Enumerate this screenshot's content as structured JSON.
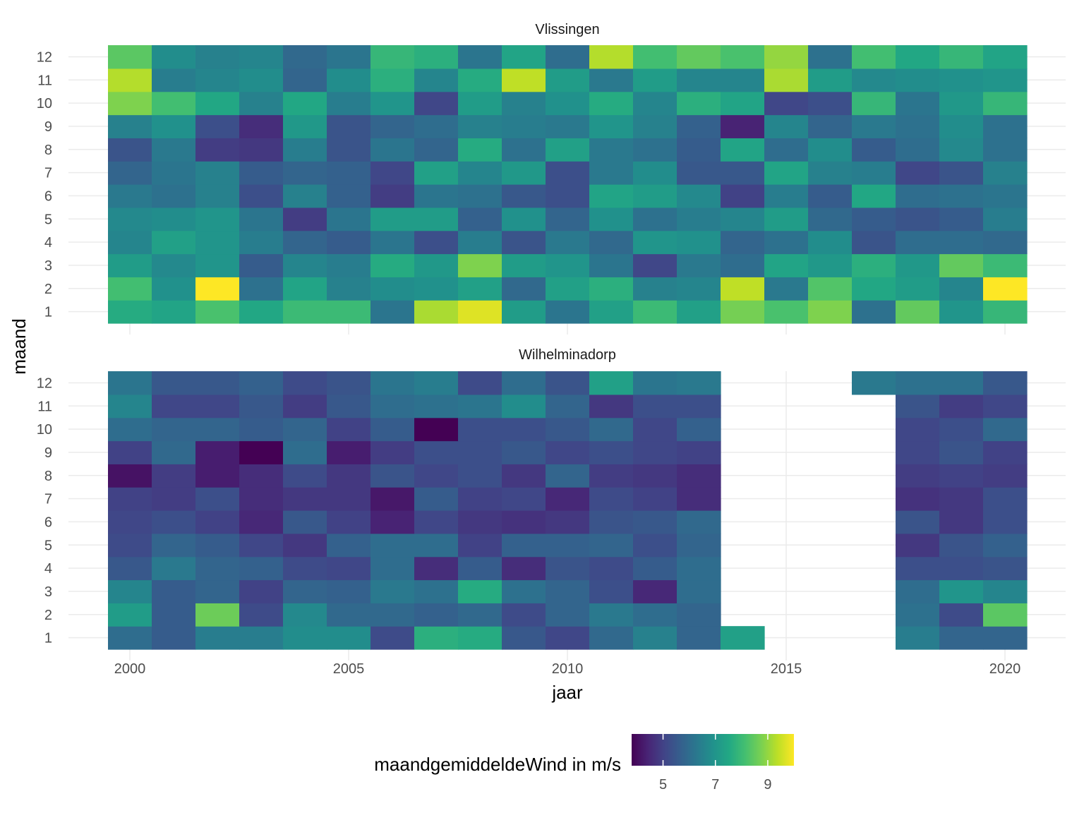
{
  "chart_data": {
    "type": "heatmap",
    "xlabel": "jaar",
    "ylabel": "maand",
    "x_ticks": [
      2000,
      2005,
      2010,
      2015,
      2020
    ],
    "x_range": [
      1999.5,
      2020.5
    ],
    "y_ticks": [
      1,
      2,
      3,
      4,
      5,
      6,
      7,
      8,
      9,
      10,
      11,
      12
    ],
    "years": [
      2000,
      2001,
      2002,
      2003,
      2004,
      2005,
      2006,
      2007,
      2008,
      2009,
      2010,
      2011,
      2012,
      2013,
      2014,
      2015,
      2016,
      2017,
      2018,
      2019,
      2020
    ],
    "colorscale": {
      "name": "viridis",
      "min": 3.8,
      "max": 10.0,
      "ticks": [
        5,
        7,
        9
      ]
    },
    "legend_title": "maandgemiddeldeWind in m/s",
    "legend_position": "bottom",
    "grid": true,
    "panels": [
      {
        "name": "Vlissingen",
        "values": [
          [
            7.6,
            7.4,
            8.2,
            7.5,
            8.0,
            8.0,
            6.2,
            9.2,
            9.7,
            7.2,
            6.2,
            7.3,
            8.0,
            7.3,
            8.7,
            8.2,
            8.8,
            6.1,
            8.5,
            7.0,
            7.9
          ],
          [
            8.1,
            6.9,
            10.0,
            6.1,
            7.4,
            6.5,
            6.8,
            6.9,
            7.3,
            5.9,
            7.3,
            7.7,
            6.5,
            6.6,
            9.4,
            6.3,
            8.3,
            7.5,
            7.2,
            6.6,
            10.0
          ],
          [
            7.2,
            6.7,
            7.0,
            5.6,
            6.6,
            6.4,
            7.6,
            7.1,
            8.8,
            7.2,
            7.0,
            6.2,
            5.1,
            6.3,
            6.0,
            7.4,
            7.1,
            7.7,
            7.1,
            8.5,
            8.0
          ],
          [
            6.6,
            7.3,
            7.0,
            6.4,
            5.8,
            5.6,
            6.2,
            5.3,
            6.4,
            5.4,
            6.3,
            5.9,
            7.0,
            6.9,
            5.8,
            6.1,
            6.8,
            5.4,
            6.0,
            6.0,
            5.9
          ],
          [
            6.7,
            6.8,
            7.0,
            6.2,
            4.9,
            6.2,
            7.2,
            7.2,
            5.7,
            6.9,
            5.8,
            6.9,
            6.1,
            6.4,
            6.6,
            7.2,
            5.9,
            5.6,
            5.4,
            5.6,
            6.4
          ],
          [
            6.3,
            6.1,
            6.5,
            5.3,
            6.5,
            5.7,
            4.9,
            6.2,
            6.1,
            5.5,
            5.3,
            7.4,
            7.2,
            6.7,
            5.0,
            6.4,
            5.6,
            7.5,
            6.0,
            6.1,
            6.2
          ],
          [
            5.8,
            6.2,
            6.5,
            5.6,
            5.8,
            5.7,
            5.1,
            7.3,
            6.6,
            7.1,
            5.3,
            6.3,
            6.8,
            5.5,
            5.5,
            7.4,
            6.5,
            6.4,
            5.1,
            5.4,
            6.5
          ],
          [
            5.4,
            6.3,
            4.9,
            4.8,
            6.4,
            5.4,
            6.2,
            5.8,
            7.6,
            6.1,
            7.3,
            6.3,
            6.1,
            5.6,
            7.4,
            6.0,
            6.8,
            5.6,
            6.0,
            6.7,
            6.1
          ],
          [
            6.5,
            6.9,
            5.3,
            4.6,
            7.1,
            5.4,
            5.8,
            6.0,
            6.5,
            6.4,
            6.3,
            7.0,
            6.5,
            5.7,
            4.4,
            6.6,
            5.8,
            6.3,
            6.1,
            6.8,
            6.1
          ],
          [
            8.8,
            8.1,
            7.5,
            6.5,
            7.5,
            6.4,
            7.0,
            5.1,
            7.2,
            6.5,
            6.9,
            7.6,
            6.6,
            7.7,
            7.4,
            5.1,
            5.3,
            7.9,
            6.2,
            7.1,
            7.9
          ],
          [
            9.3,
            6.4,
            6.6,
            6.8,
            5.8,
            6.8,
            7.7,
            6.6,
            7.6,
            9.4,
            7.2,
            6.3,
            7.2,
            6.6,
            6.6,
            9.2,
            7.2,
            6.7,
            6.8,
            6.9,
            7.0
          ],
          [
            8.4,
            6.8,
            6.5,
            6.6,
            5.9,
            6.2,
            7.9,
            7.7,
            6.2,
            7.4,
            6.0,
            9.3,
            8.1,
            8.5,
            8.2,
            9.0,
            6.1,
            8.1,
            7.5,
            7.9,
            7.4
          ]
        ]
      },
      {
        "name": "Wilhelminadorp",
        "values": [
          [
            6.0,
            5.6,
            6.4,
            6.4,
            6.8,
            6.8,
            5.2,
            7.7,
            7.6,
            5.5,
            5.1,
            5.9,
            6.5,
            5.8,
            7.3,
            null,
            null,
            null,
            6.4,
            5.8,
            5.8
          ],
          [
            7.2,
            5.6,
            8.6,
            5.2,
            6.7,
            5.9,
            5.9,
            5.7,
            5.9,
            5.2,
            5.8,
            6.3,
            6.0,
            5.8,
            null,
            null,
            null,
            null,
            6.1,
            5.2,
            8.4
          ],
          [
            6.6,
            5.6,
            5.8,
            5.0,
            5.8,
            5.7,
            6.3,
            6.1,
            7.6,
            6.1,
            5.8,
            5.3,
            4.5,
            6.0,
            null,
            null,
            null,
            null,
            6.0,
            7.0,
            6.6
          ],
          [
            5.5,
            6.3,
            5.8,
            5.7,
            5.2,
            5.1,
            6.0,
            4.6,
            5.6,
            4.6,
            5.4,
            5.2,
            5.6,
            6.0,
            null,
            null,
            null,
            null,
            5.3,
            5.3,
            5.4
          ],
          [
            5.2,
            5.8,
            5.6,
            5.1,
            4.8,
            5.7,
            6.0,
            6.0,
            5.0,
            5.7,
            5.7,
            5.8,
            5.3,
            5.8,
            null,
            null,
            null,
            null,
            4.8,
            5.4,
            5.7
          ],
          [
            5.1,
            5.3,
            5.0,
            4.5,
            5.5,
            5.0,
            4.4,
            5.1,
            4.8,
            4.7,
            4.8,
            5.4,
            5.5,
            5.9,
            null,
            null,
            null,
            null,
            5.4,
            4.8,
            5.3
          ],
          [
            5.0,
            4.9,
            5.3,
            4.6,
            4.8,
            4.8,
            4.2,
            5.6,
            5.0,
            5.1,
            4.5,
            5.2,
            5.0,
            4.6,
            null,
            null,
            null,
            null,
            4.7,
            4.8,
            5.3
          ],
          [
            4.1,
            4.9,
            4.3,
            4.6,
            5.2,
            4.8,
            5.4,
            5.1,
            5.3,
            4.8,
            5.8,
            4.9,
            4.8,
            4.6,
            null,
            null,
            null,
            null,
            4.9,
            5.0,
            4.9
          ],
          [
            5.0,
            5.9,
            4.3,
            3.8,
            6.0,
            4.3,
            4.9,
            5.3,
            5.3,
            5.5,
            5.1,
            5.3,
            5.1,
            5.0,
            null,
            null,
            null,
            null,
            5.1,
            5.4,
            5.0
          ],
          [
            6.0,
            5.8,
            5.8,
            5.6,
            5.8,
            5.0,
            5.6,
            3.8,
            5.3,
            5.3,
            5.5,
            5.9,
            5.1,
            5.7,
            null,
            null,
            null,
            null,
            5.1,
            5.3,
            5.9
          ],
          [
            6.6,
            5.1,
            5.1,
            5.5,
            4.9,
            5.5,
            6.0,
            6.1,
            6.2,
            6.8,
            5.8,
            4.8,
            5.3,
            5.3,
            null,
            null,
            null,
            null,
            5.4,
            4.9,
            5.1
          ],
          [
            6.2,
            5.5,
            5.5,
            5.7,
            5.2,
            5.4,
            6.2,
            6.4,
            5.2,
            6.0,
            5.4,
            7.3,
            6.2,
            6.3,
            null,
            null,
            null,
            6.3,
            6.1,
            6.1,
            5.5
          ]
        ]
      }
    ]
  }
}
